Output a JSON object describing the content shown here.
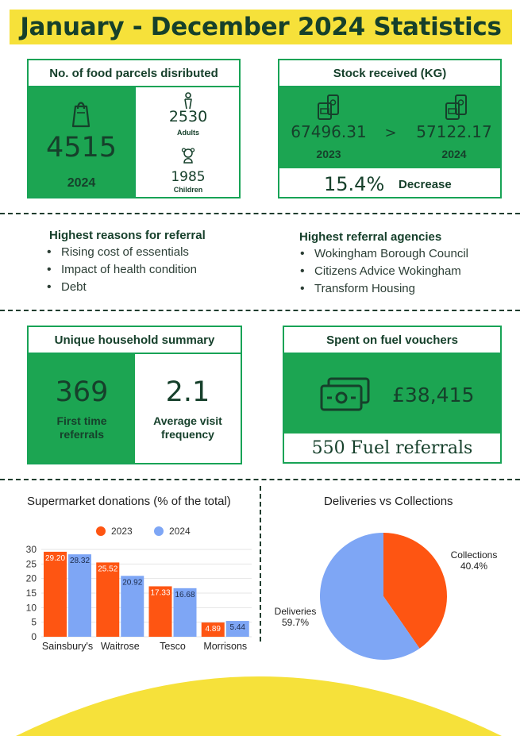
{
  "header": {
    "title": "January - December 2024 Statistics"
  },
  "parcels": {
    "title": "No. of food parcels disributed",
    "total": "4515",
    "year": "2024",
    "adults_value": "2530",
    "adults_label": "Adults",
    "children_value": "1985",
    "children_label": "Children"
  },
  "stock": {
    "title": "Stock received (KG)",
    "value_2023": "67496.31",
    "label_2023": "2023",
    "arrow": ">",
    "value_2024": "57122.17",
    "label_2024": "2024",
    "change_pct": "15.4%",
    "change_label": "Decrease"
  },
  "referral_reasons": {
    "title": "Highest reasons for referral",
    "items": [
      "Rising cost of essentials",
      "Impact of health condition",
      "Debt"
    ]
  },
  "referral_agencies": {
    "title": "Highest referral agencies",
    "items": [
      "Wokingham Borough Council",
      "Citizens Advice Wokingham",
      "Transform Housing"
    ]
  },
  "households": {
    "title": "Unique household summary",
    "first_time_value": "369",
    "first_time_label": "First time referrals",
    "avg_visit_value": "2.1",
    "avg_visit_label": "Average visit frequency"
  },
  "fuel": {
    "title": "Spent on fuel vouchers",
    "amount": "£38,415",
    "referrals": "550 Fuel referrals"
  },
  "colors": {
    "green": "#1ca552",
    "yellow": "#f6e13a",
    "dark_text": "#16402b",
    "series_2023": "#fe5512",
    "series_2024": "#7ea6f5"
  },
  "icons": {
    "parcels": "shopping-bag-icon",
    "adults": "person-icon",
    "children": "child-icon",
    "stock": "tin-cans-icon",
    "fuel": "banknotes-icon"
  },
  "chart_data": [
    {
      "type": "bar",
      "title": "Supermarket donations (% of the total)",
      "categories": [
        "Sainsbury's",
        "Waitrose",
        "Tesco",
        "Morrisons"
      ],
      "series": [
        {
          "name": "2023",
          "color": "#fe5512",
          "values": [
            29.2,
            25.52,
            17.33,
            4.89
          ],
          "labels": [
            "29.20",
            "25.52",
            "17.33",
            "4.89"
          ]
        },
        {
          "name": "2024",
          "color": "#7ea6f5",
          "values": [
            28.32,
            20.92,
            16.68,
            5.44
          ],
          "labels": [
            "28.32",
            "20.92",
            "16.68",
            "5.44"
          ]
        }
      ],
      "yticks": [
        "0",
        "5",
        "10",
        "15",
        "20",
        "25",
        "30"
      ],
      "ylim": [
        0,
        30
      ],
      "legend": "top",
      "grid": true
    },
    {
      "type": "pie",
      "title": "Deliveries vs Collections",
      "slices": [
        {
          "name": "Collections",
          "value": 40.4,
          "label": "40.4%",
          "color": "#fe5512"
        },
        {
          "name": "Deliveries",
          "value": 59.7,
          "label": "59.7%",
          "color": "#7ea6f5"
        }
      ]
    }
  ]
}
